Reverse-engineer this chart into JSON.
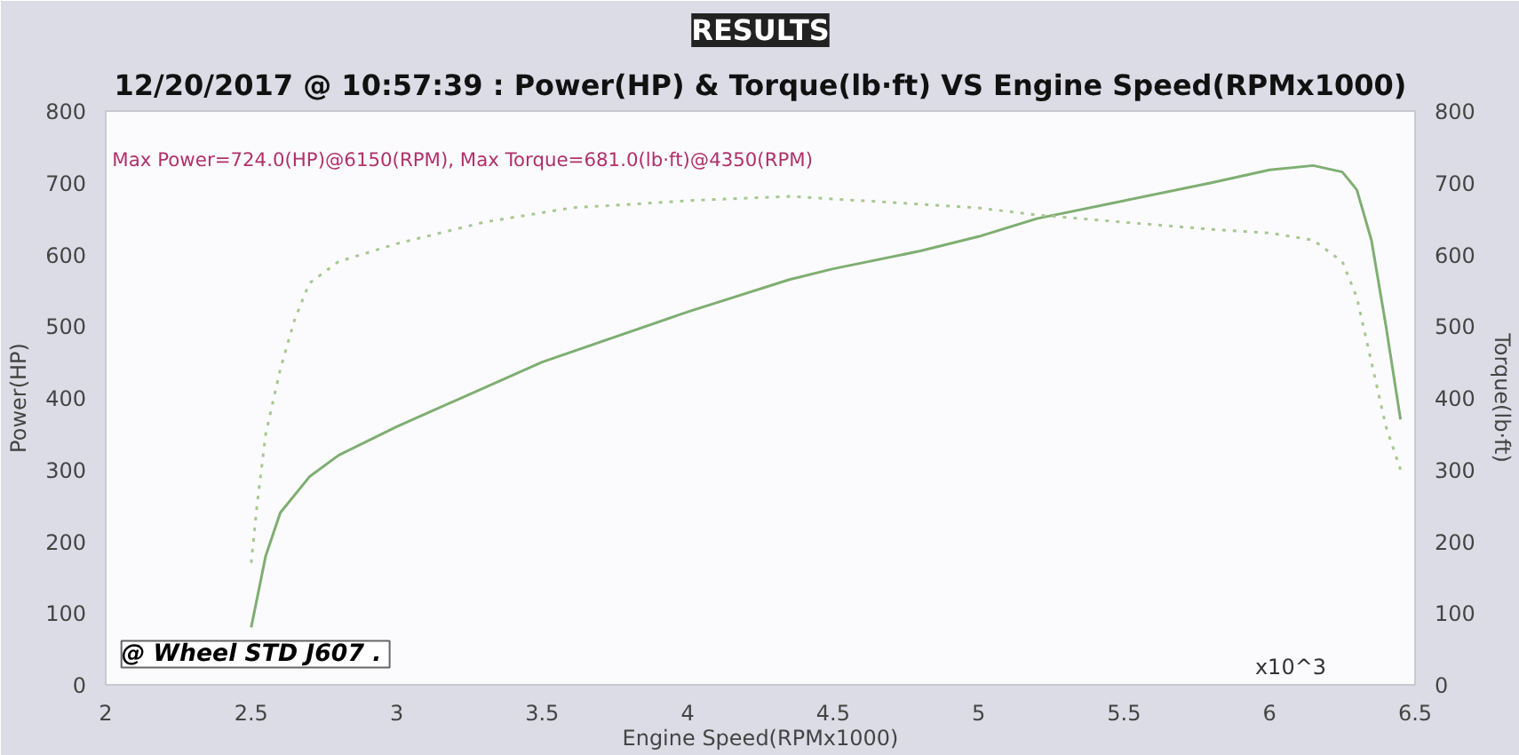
{
  "chart_data": {
    "type": "line",
    "title": "RESULTS",
    "subtitle": "12/20/2017 @ 10:57:39 : Power(HP) & Torque(lb·ft) VS Engine Speed(RPMx1000)",
    "xlabel": "Engine Speed(RPMx1000)",
    "ylabel": "Power(HP)",
    "y2label": "Torque(lb·ft)",
    "xlim": [
      2,
      6.5
    ],
    "xticks": [
      2,
      2.5,
      3,
      3.5,
      4,
      4.5,
      5,
      5.5,
      6,
      6.5
    ],
    "ylim": [
      0,
      800
    ],
    "yticks": [
      0,
      100,
      200,
      300,
      400,
      500,
      600,
      700,
      800
    ],
    "y2lim": [
      0,
      800
    ],
    "y2ticks": [
      0,
      100,
      200,
      300,
      400,
      500,
      600,
      700,
      800
    ],
    "grid": false,
    "series": [
      {
        "color": "#7fae72",
        "line_style": "solid",
        "x": [
          2.5,
          2.55,
          2.6,
          2.7,
          2.8,
          3.0,
          3.5,
          4.0,
          4.35,
          4.5,
          4.8,
          5.0,
          5.2,
          5.5,
          5.8,
          6.0,
          6.15,
          6.25,
          6.3,
          6.35,
          6.4,
          6.45
        ],
        "values": [
          80,
          180,
          240,
          290,
          320,
          360,
          450,
          520,
          565,
          580,
          605,
          625,
          650,
          675,
          700,
          718,
          724,
          715,
          690,
          620,
          500,
          370
        ]
      },
      {
        "color": "#a8c890",
        "line_style": "dotted",
        "axis": "y2",
        "x": [
          2.5,
          2.52,
          2.55,
          2.6,
          2.65,
          2.7,
          2.8,
          3.0,
          3.3,
          3.6,
          4.0,
          4.35,
          4.6,
          5.0,
          5.2,
          5.5,
          5.8,
          6.0,
          6.15,
          6.25,
          6.3,
          6.35,
          6.4,
          6.45
        ],
        "values": [
          170,
          250,
          350,
          440,
          510,
          560,
          590,
          615,
          645,
          665,
          675,
          681,
          675,
          665,
          655,
          645,
          635,
          630,
          620,
          590,
          540,
          450,
          360,
          300
        ]
      }
    ],
    "annotations": [
      "Max Power=724.0(HP)@6150(RPM), Max Torque=681.0(lb·ft)@4350(RPM)",
      "@ Wheel STD J607  .",
      "x10^3"
    ]
  }
}
